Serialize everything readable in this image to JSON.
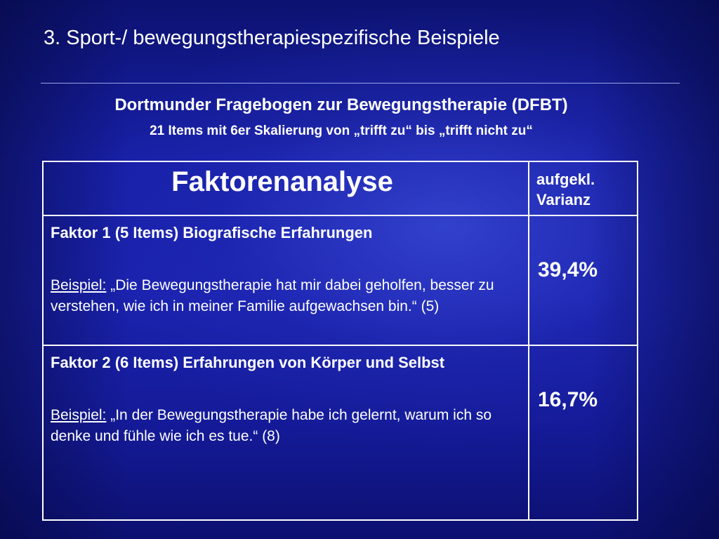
{
  "slide": {
    "title": "3. Sport-/ bewegungstherapiespezifische Beispiele",
    "subtitle_main": "Dortmunder Fragebogen zur Bewegungstherapie (DFBT)",
    "subtitle_sub": "21 Items mit 6er Skalierung von „trifft zu“ bis „trifft nicht zu“"
  },
  "table": {
    "header_left": "Faktorenanalyse",
    "header_right_line1": "aufgekl.",
    "header_right_line2": "Varianz",
    "rows": [
      {
        "factor_title": "Faktor 1 (5 Items) Biografische Erfahrungen",
        "example_label": "Beispiel:",
        "example_text": " „Die Bewegungstherapie hat mir dabei geholfen, besser zu verstehen, wie ich in meiner Familie aufgewachsen bin.“ (5)",
        "variance": "39,4%"
      },
      {
        "factor_title": "Faktor 2 (6 Items) Erfahrungen von Körper und Selbst",
        "example_label": "Beispiel:",
        "example_text": " „In der Bewegungstherapie habe ich gelernt, warum ich so denke und fühle wie ich es tue.“ (8)",
        "variance": "16,7%"
      }
    ]
  }
}
